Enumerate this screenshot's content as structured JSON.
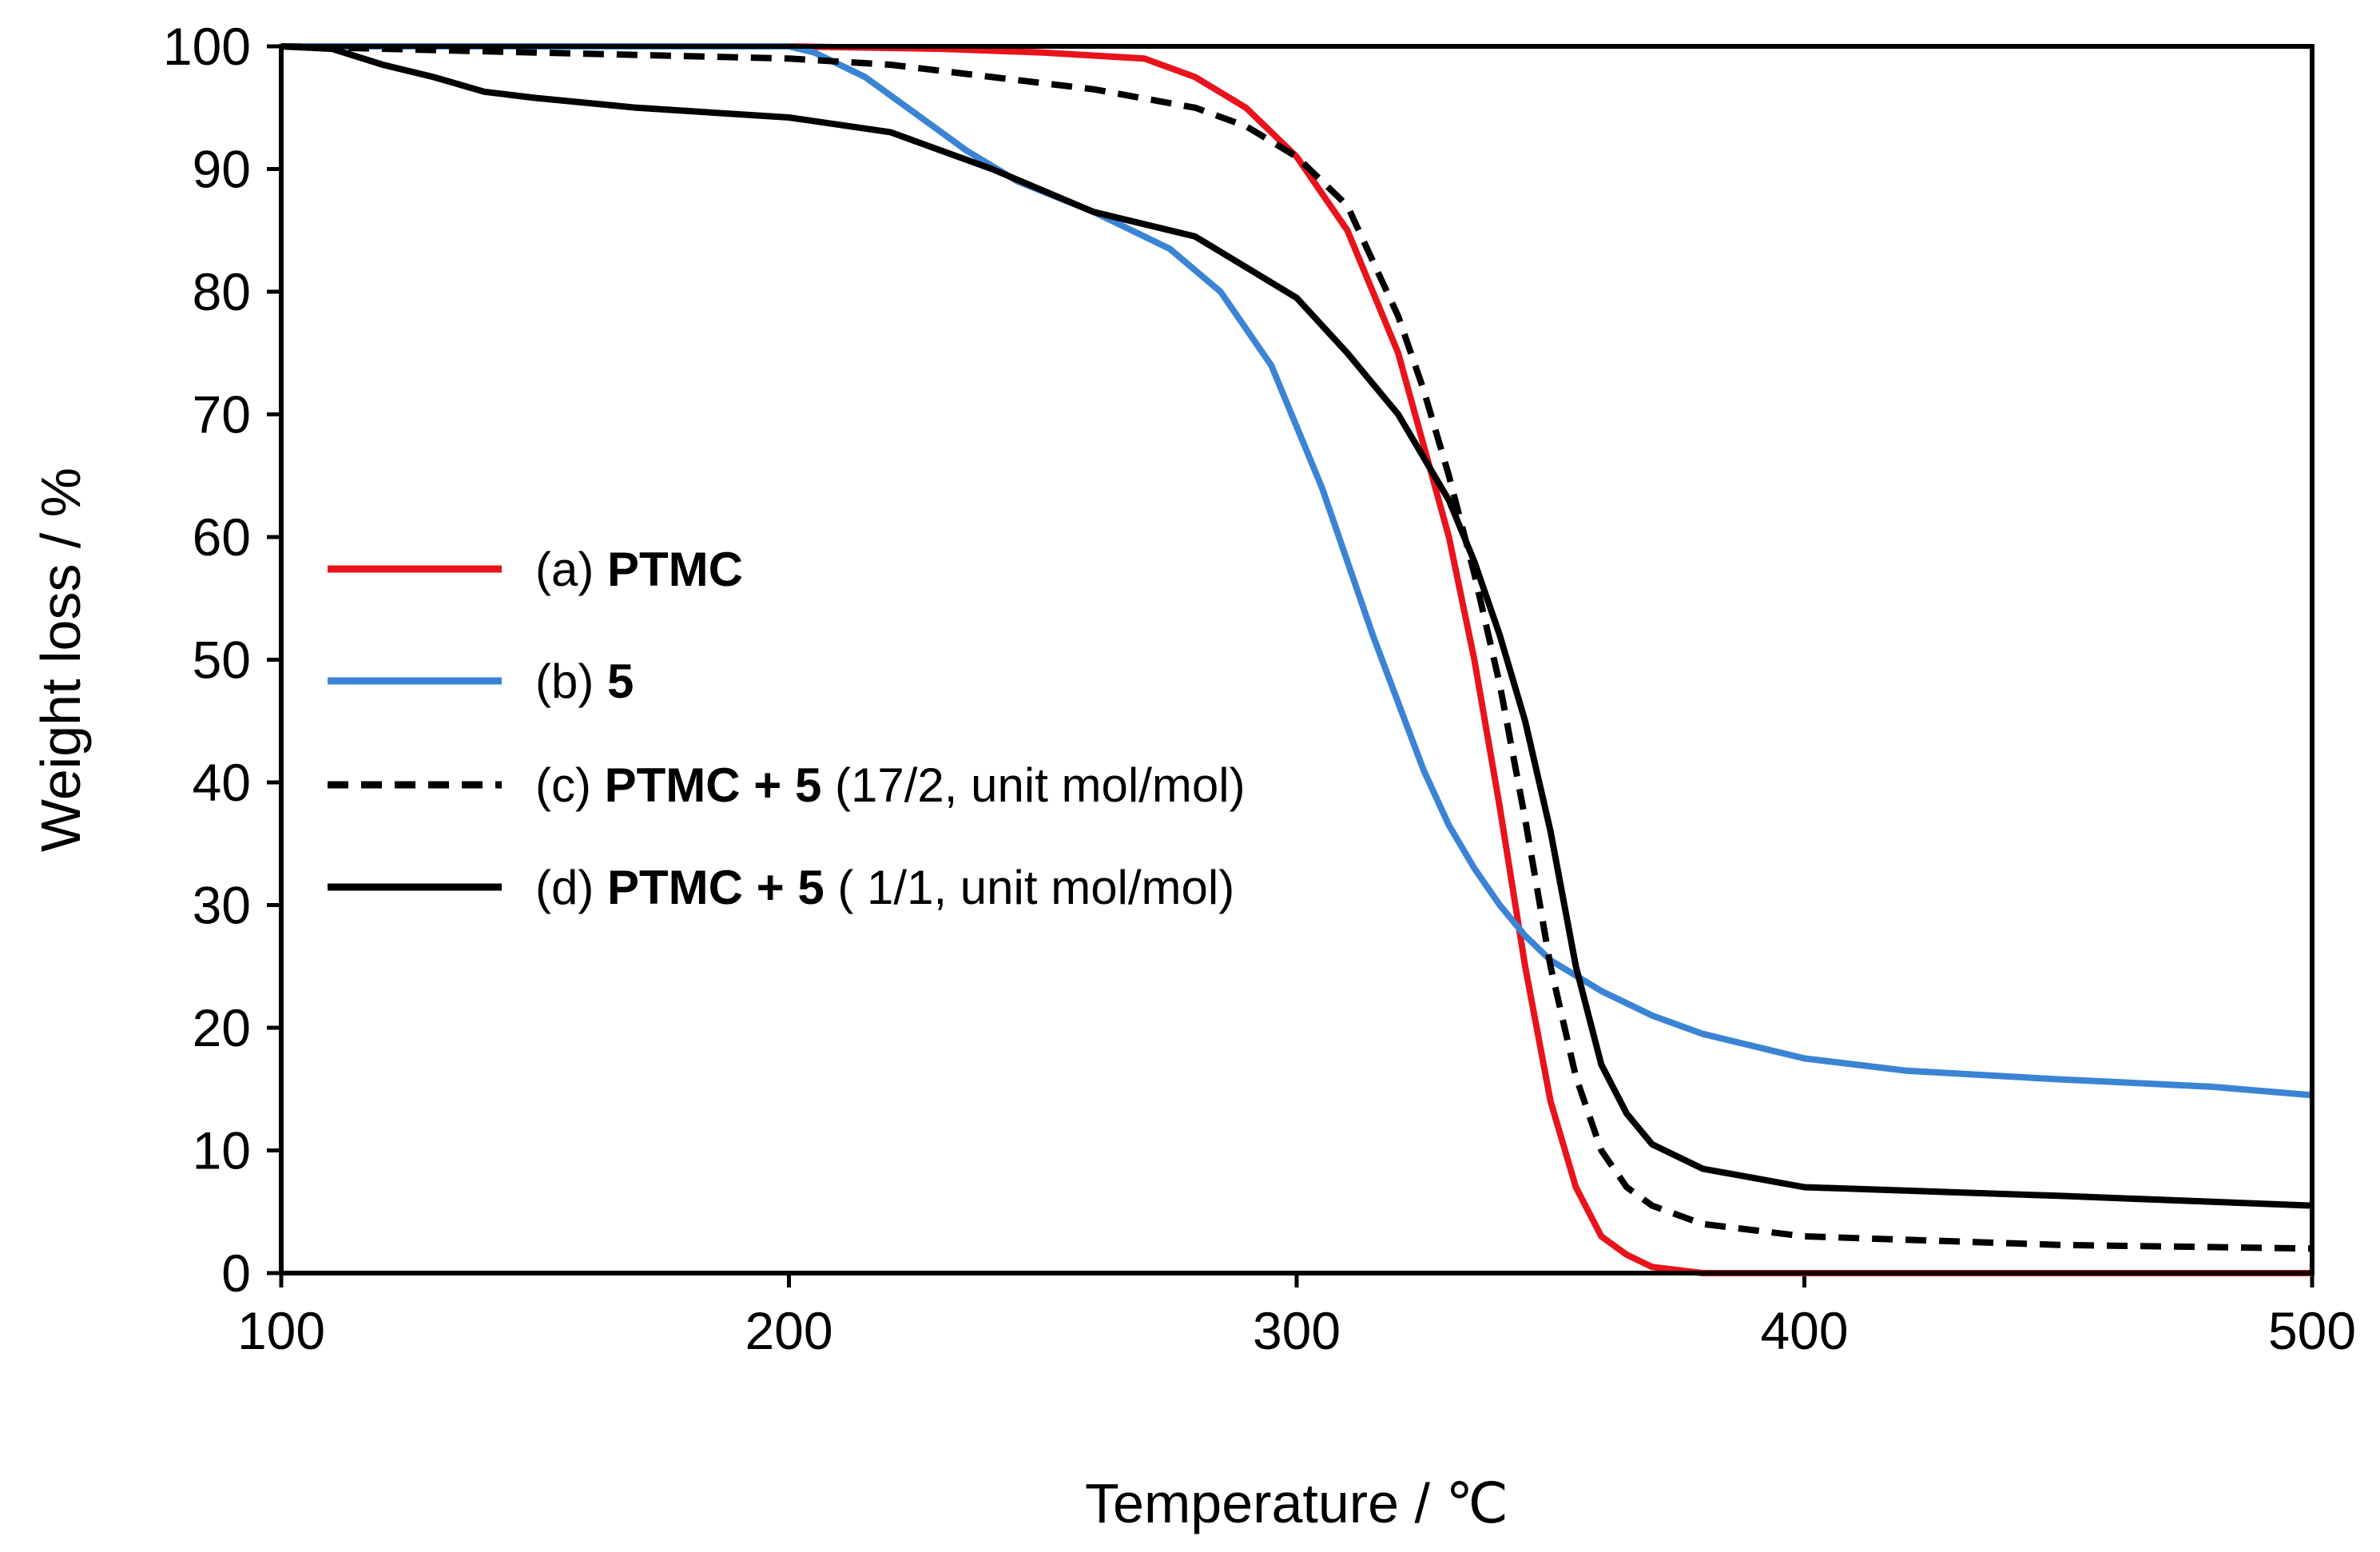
{
  "chart_data": {
    "type": "line",
    "xlabel": "Temperature / ℃",
    "ylabel": "Weight loss / %",
    "xlim": [
      100,
      500
    ],
    "ylim": [
      0,
      100
    ],
    "xticks": [
      100,
      200,
      300,
      400,
      500
    ],
    "yticks": [
      0,
      10,
      20,
      30,
      40,
      50,
      60,
      70,
      80,
      90,
      100
    ],
    "grid": false,
    "legend_position": "center-left",
    "series": [
      {
        "id": "a",
        "legend": {
          "prefix": "(a) ",
          "bold": "PTMC",
          "suffix": ""
        },
        "color": "#e8131b",
        "dash": "solid",
        "x": [
          100,
          150,
          200,
          230,
          250,
          270,
          280,
          290,
          300,
          310,
          320,
          330,
          335,
          340,
          345,
          350,
          355,
          360,
          365,
          370,
          380,
          400,
          450,
          500
        ],
        "y": [
          100,
          100,
          100,
          99.8,
          99.5,
          99.0,
          97.5,
          95.0,
          91.0,
          85.0,
          75.0,
          60.0,
          50.0,
          38.0,
          25.0,
          14.0,
          7.0,
          3.0,
          1.5,
          0.5,
          0,
          0,
          0,
          0
        ]
      },
      {
        "id": "b",
        "legend": {
          "prefix": "(b)  ",
          "bold": "5",
          "suffix": ""
        },
        "color": "#3b84d4",
        "dash": "solid",
        "x": [
          100,
          150,
          200,
          205,
          215,
          225,
          235,
          245,
          260,
          275,
          285,
          295,
          305,
          315,
          320,
          325,
          330,
          335,
          340,
          345,
          350,
          360,
          370,
          380,
          400,
          420,
          450,
          480,
          500
        ],
        "y": [
          100,
          100,
          100,
          99.5,
          97.5,
          94.5,
          91.5,
          89.0,
          86.5,
          83.5,
          80.0,
          74.0,
          64.0,
          52.0,
          46.5,
          41.0,
          36.5,
          33.0,
          30.0,
          27.5,
          25.5,
          23.0,
          21.0,
          19.5,
          17.5,
          16.5,
          15.8,
          15.2,
          14.5
        ]
      },
      {
        "id": "c",
        "legend": {
          "prefix": "(c) ",
          "bold": "PTMC + 5",
          "suffix": " (17/2, unit mol/mol)"
        },
        "color": "#000000",
        "dash": "dashed",
        "x": [
          100,
          150,
          200,
          220,
          240,
          260,
          280,
          290,
          300,
          310,
          320,
          325,
          330,
          335,
          340,
          345,
          350,
          355,
          360,
          365,
          370,
          380,
          400,
          450,
          500
        ],
        "y": [
          100,
          99.5,
          99.0,
          98.5,
          97.5,
          96.5,
          95.0,
          93.5,
          91.0,
          87.0,
          78.0,
          72.0,
          65.0,
          57.0,
          48.0,
          37.0,
          25.0,
          16.0,
          10.0,
          7.0,
          5.5,
          4.0,
          3.0,
          2.3,
          2.0
        ]
      },
      {
        "id": "d",
        "legend": {
          "prefix": "(d) ",
          "bold": "PTMC + 5",
          "suffix": " ( 1/1, unit mol/mol)"
        },
        "color": "#000000",
        "dash": "solid",
        "x": [
          100,
          110,
          120,
          130,
          140,
          150,
          170,
          200,
          220,
          240,
          260,
          280,
          290,
          300,
          310,
          320,
          330,
          335,
          340,
          345,
          350,
          355,
          360,
          365,
          370,
          380,
          400,
          450,
          500
        ],
        "y": [
          100,
          99.8,
          98.5,
          97.5,
          96.3,
          95.8,
          95.0,
          94.2,
          93.0,
          90.0,
          86.5,
          84.5,
          82.0,
          79.5,
          75.0,
          70.0,
          63.0,
          58.0,
          52.0,
          45.0,
          36.0,
          25.0,
          17.0,
          13.0,
          10.5,
          8.5,
          7.0,
          6.3,
          5.5
        ]
      }
    ]
  }
}
